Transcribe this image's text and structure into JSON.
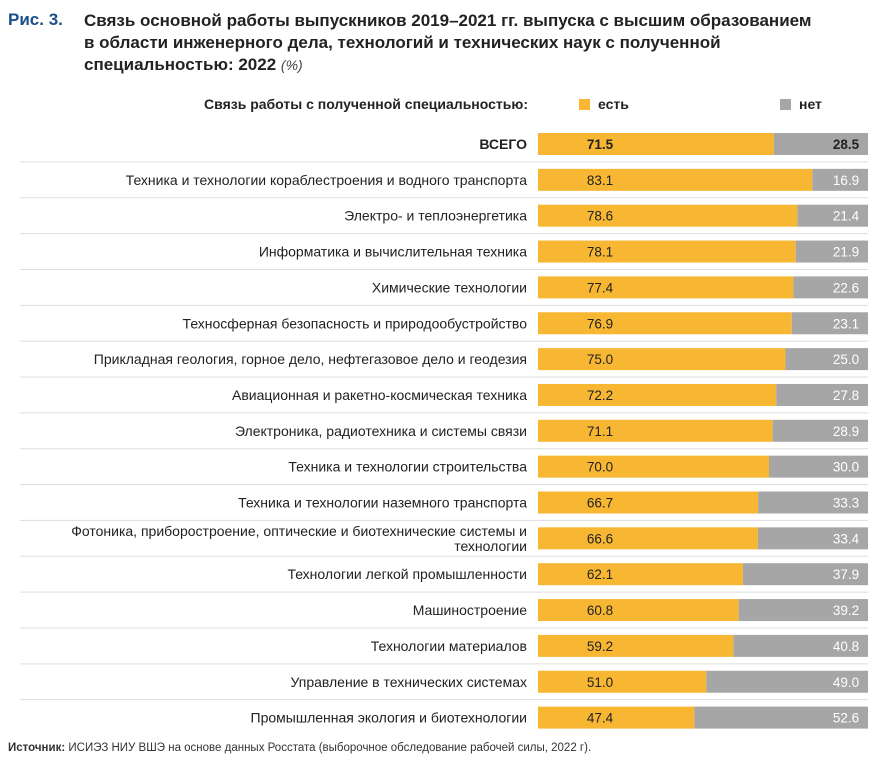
{
  "figure": {
    "number": "Рис. 3.",
    "title": "Связь основной работы выпускников 2019–2021 гг. выпуска с высшим образованием в области инженерного дела, технологий и технических наук с полученной специальностью: 2022",
    "unit": "(%)"
  },
  "legend": {
    "caption": "Связь работы с полученной специальностью:",
    "yes_label": "есть",
    "no_label": "нет"
  },
  "colors": {
    "yes": "#f7b733",
    "no": "#a6a6a6",
    "grid": "#dddddd"
  },
  "chart_data": {
    "type": "bar",
    "orientation": "horizontal",
    "stacked": true,
    "xlim": [
      0,
      100
    ],
    "categories": [
      "ВСЕГО",
      "Техника и технологии кораблестроения и водного транспорта",
      "Электро- и теплоэнергетика",
      "Информатика и вычислительная техника",
      "Химические технологии",
      "Техносферная безопасность и природообустройство",
      "Прикладная геология, горное дело, нефтегазовое дело и геодезия",
      "Авиационная и ракетно-космическая техника",
      "Электроника, радиотехника и системы связи",
      "Техника и технологии строительства",
      "Техника и технологии наземного транспорта",
      "Фотоника, приборостроение, оптические и биотехнические системы  и технологии",
      "Технологии легкой промышленности",
      "Машиностроение",
      "Технологии материалов",
      "Управление в технических системах",
      "Промышленная экология и биотехнологии"
    ],
    "series": [
      {
        "name": "есть",
        "values": [
          71.5,
          83.1,
          78.6,
          78.1,
          77.4,
          76.9,
          75.0,
          72.2,
          71.1,
          70.0,
          66.7,
          66.6,
          62.1,
          60.8,
          59.2,
          51.0,
          47.4
        ]
      },
      {
        "name": "нет",
        "values": [
          28.5,
          16.9,
          21.4,
          21.9,
          22.6,
          23.1,
          25.0,
          27.8,
          28.9,
          30.0,
          33.3,
          33.4,
          37.9,
          39.2,
          40.8,
          49.0,
          52.6
        ]
      }
    ],
    "value_labels": {
      "yes": [
        "71.5",
        "83.1",
        "78.6",
        "78.1",
        "77.4",
        "76.9",
        "75.0",
        "72.2",
        "71.1",
        "70.0",
        "66.7",
        "66.6",
        "62.1",
        "60.8",
        "59.2",
        "51.0",
        "47.4"
      ],
      "no": [
        "28.5",
        "16.9",
        "21.4",
        "21.9",
        "22.6",
        "23.1",
        "25.0",
        "27.8",
        "28.9",
        "30.0",
        "33.3",
        "33.4",
        "37.9",
        "39.2",
        "40.8",
        "49.0",
        "52.6"
      ]
    }
  },
  "source": {
    "label": "Источник:",
    "text": " ИСИЭЗ НИУ ВШЭ на основе данных Росстата (выборочное обследование рабочей силы, 2022 г)."
  }
}
